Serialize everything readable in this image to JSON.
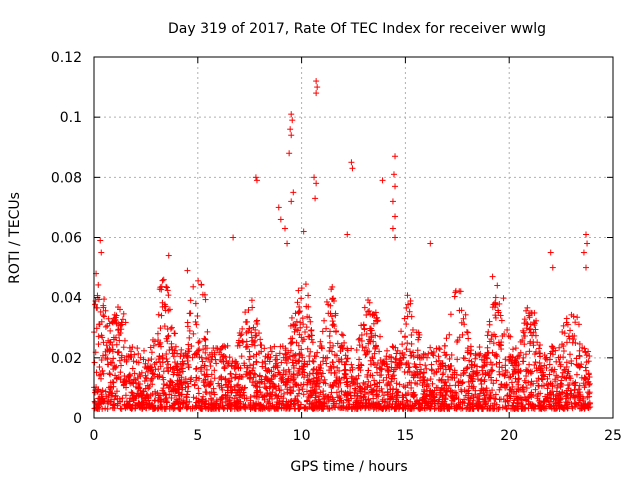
{
  "chart_data": {
    "type": "scatter",
    "title": "Day 319 of 2017, Rate Of TEC Index for receiver wwlg",
    "xlabel": "GPS time / hours",
    "ylabel": "ROTI / TECUs",
    "xlim": [
      0,
      25
    ],
    "ylim": [
      0,
      0.12
    ],
    "xticks": [
      "0",
      "5",
      "10",
      "15",
      "20",
      "25"
    ],
    "yticks": [
      "0",
      "0.02",
      "0.04",
      "0.06",
      "0.08",
      "0.1",
      "0.12"
    ],
    "grid": true,
    "marker": "+",
    "color": "#ff0000",
    "series": [
      {
        "name": "ROTI",
        "notable_points": [
          {
            "x": 0.1,
            "y": 0.048
          },
          {
            "x": 0.3,
            "y": 0.059
          },
          {
            "x": 0.35,
            "y": 0.055
          },
          {
            "x": 3.6,
            "y": 0.054
          },
          {
            "x": 4.5,
            "y": 0.049
          },
          {
            "x": 6.7,
            "y": 0.06
          },
          {
            "x": 7.8,
            "y": 0.08
          },
          {
            "x": 7.85,
            "y": 0.079
          },
          {
            "x": 8.9,
            "y": 0.07
          },
          {
            "x": 9.0,
            "y": 0.066
          },
          {
            "x": 9.2,
            "y": 0.063
          },
          {
            "x": 9.5,
            "y": 0.101
          },
          {
            "x": 9.55,
            "y": 0.099
          },
          {
            "x": 9.45,
            "y": 0.096
          },
          {
            "x": 9.5,
            "y": 0.094
          },
          {
            "x": 9.4,
            "y": 0.088
          },
          {
            "x": 9.6,
            "y": 0.075
          },
          {
            "x": 9.5,
            "y": 0.072
          },
          {
            "x": 9.3,
            "y": 0.058
          },
          {
            "x": 10.1,
            "y": 0.062
          },
          {
            "x": 10.7,
            "y": 0.112
          },
          {
            "x": 10.75,
            "y": 0.11
          },
          {
            "x": 10.7,
            "y": 0.108
          },
          {
            "x": 10.6,
            "y": 0.08
          },
          {
            "x": 10.7,
            "y": 0.078
          },
          {
            "x": 10.65,
            "y": 0.073
          },
          {
            "x": 12.4,
            "y": 0.085
          },
          {
            "x": 12.45,
            "y": 0.083
          },
          {
            "x": 12.2,
            "y": 0.061
          },
          {
            "x": 13.9,
            "y": 0.079
          },
          {
            "x": 14.5,
            "y": 0.087
          },
          {
            "x": 14.45,
            "y": 0.081
          },
          {
            "x": 14.5,
            "y": 0.077
          },
          {
            "x": 14.4,
            "y": 0.072
          },
          {
            "x": 14.5,
            "y": 0.067
          },
          {
            "x": 14.4,
            "y": 0.063
          },
          {
            "x": 14.5,
            "y": 0.06
          },
          {
            "x": 16.2,
            "y": 0.058
          },
          {
            "x": 19.2,
            "y": 0.047
          },
          {
            "x": 22.0,
            "y": 0.055
          },
          {
            "x": 22.1,
            "y": 0.05
          },
          {
            "x": 23.7,
            "y": 0.061
          },
          {
            "x": 23.75,
            "y": 0.058
          },
          {
            "x": 23.6,
            "y": 0.055
          },
          {
            "x": 23.7,
            "y": 0.05
          }
        ],
        "bulk": {
          "x_range": [
            0,
            23.9
          ],
          "typical_y_range": [
            0.003,
            0.04
          ],
          "peaks": [
            {
              "x": 0.3,
              "y": 0.045
            },
            {
              "x": 1.2,
              "y": 0.038
            },
            {
              "x": 3.4,
              "y": 0.047
            },
            {
              "x": 5.0,
              "y": 0.05
            },
            {
              "x": 7.5,
              "y": 0.042
            },
            {
              "x": 10.0,
              "y": 0.048
            },
            {
              "x": 11.5,
              "y": 0.046
            },
            {
              "x": 13.3,
              "y": 0.044
            },
            {
              "x": 15.2,
              "y": 0.042
            },
            {
              "x": 17.5,
              "y": 0.045
            },
            {
              "x": 19.5,
              "y": 0.045
            },
            {
              "x": 21.0,
              "y": 0.038
            },
            {
              "x": 23.0,
              "y": 0.04
            }
          ]
        }
      }
    ]
  }
}
